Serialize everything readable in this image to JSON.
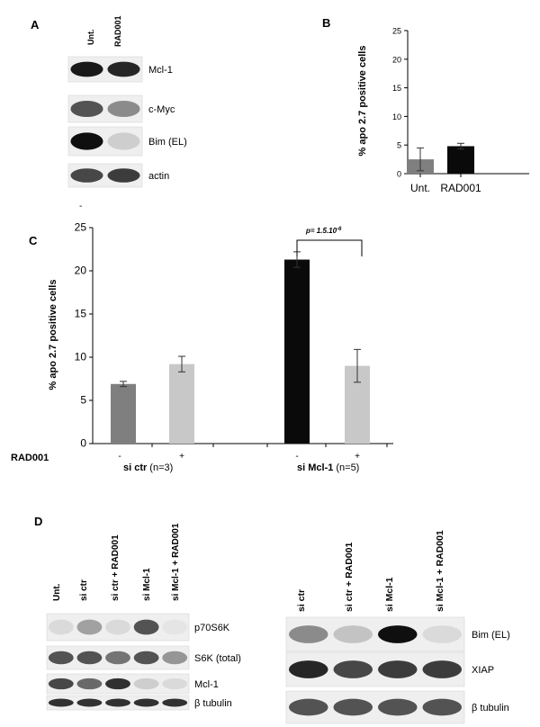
{
  "panelA": {
    "letter": "A",
    "lanes": [
      "Unt.",
      "RAD001"
    ],
    "blots": [
      {
        "label": "Mcl-1",
        "band_intensity": [
          0.95,
          0.9
        ]
      },
      {
        "label": "c-Myc",
        "band_intensity": [
          0.7,
          0.45
        ]
      },
      {
        "label": "Bim (EL)",
        "band_intensity": [
          1.0,
          0.15
        ]
      },
      {
        "label": "actin",
        "band_intensity": [
          0.75,
          0.8
        ]
      }
    ],
    "dash": "-"
  },
  "panelB": {
    "letter": "B"
  },
  "panelC": {
    "letter": "C",
    "rad_label": "RAD001",
    "p_value_label": "p= 1.5.10",
    "p_exponent": "-6",
    "group_labels": [
      {
        "name": "si ctr",
        "n": "(n=3)"
      },
      {
        "name": "si Mcl-1",
        "n": "(n=5)"
      }
    ],
    "signs": [
      "-",
      "+",
      "-",
      "+"
    ]
  },
  "panelD": {
    "letter": "D",
    "left": {
      "lanes": [
        "Unt.",
        "si ctr",
        "si ctr + RAD001",
        "si Mcl-1",
        "si Mcl-1 + RAD001"
      ],
      "blots": [
        {
          "label": "p70S6K",
          "band_intensity": [
            0.1,
            0.35,
            0.1,
            0.7,
            0.05
          ]
        },
        {
          "label": "S6K (total)",
          "band_intensity": [
            0.7,
            0.7,
            0.55,
            0.7,
            0.4
          ]
        },
        {
          "label": "Mcl-1",
          "band_intensity": [
            0.75,
            0.6,
            0.85,
            0.15,
            0.1
          ]
        },
        {
          "label": "β tubulin",
          "band_intensity": [
            0.85,
            0.85,
            0.85,
            0.85,
            0.85
          ]
        }
      ]
    },
    "right": {
      "lanes": [
        "si ctr",
        "si ctr + RAD001",
        "si Mcl-1",
        "si Mcl-1 + RAD001"
      ],
      "blots": [
        {
          "label": "Bim (EL)",
          "band_intensity": [
            0.45,
            0.2,
            1.0,
            0.1
          ]
        },
        {
          "label": "XIAP",
          "band_intensity": [
            0.9,
            0.75,
            0.8,
            0.8
          ]
        },
        {
          "label": "β tubulin",
          "band_intensity": [
            0.7,
            0.7,
            0.7,
            0.7
          ]
        }
      ]
    }
  },
  "chart_data": [
    {
      "type": "bar",
      "panel": "B",
      "categories": [
        "Unt.",
        "RAD001"
      ],
      "values": [
        2.5,
        4.8
      ],
      "errors": [
        2.0,
        0.5
      ],
      "colors": [
        "#7f7f7f",
        "#0a0a0a"
      ],
      "ylabel": "% apo 2.7 positive cells",
      "ylim": [
        0,
        25
      ],
      "yticks": [
        0,
        5,
        10,
        15,
        20,
        25
      ],
      "grid": false
    },
    {
      "type": "bar",
      "panel": "C",
      "categories": [
        "si ctr -",
        "si ctr +",
        "si Mcl-1 -",
        "si Mcl-1 +"
      ],
      "values": [
        6.9,
        9.2,
        21.3,
        9.0
      ],
      "errors": [
        0.3,
        0.9,
        0.9,
        1.9
      ],
      "colors": [
        "#7f7f7f",
        "#c8c8c8",
        "#0a0a0a",
        "#c8c8c8"
      ],
      "ylabel": "% apo 2.7 positive cells",
      "ylim": [
        0,
        25
      ],
      "yticks": [
        0,
        5,
        10,
        15,
        20,
        25
      ],
      "grid": false
    }
  ]
}
